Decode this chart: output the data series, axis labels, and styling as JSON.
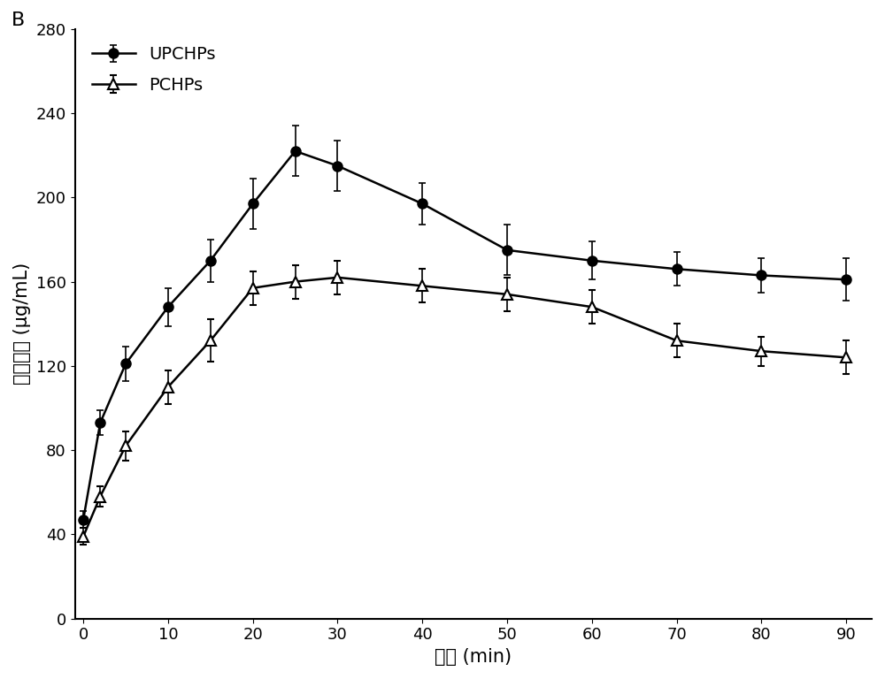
{
  "title_label": "B",
  "xlabel": "时间 (min)",
  "ylabel": "多肽浓度 (μg/mL)",
  "xlim": [
    -1,
    93
  ],
  "ylim": [
    0,
    280
  ],
  "xticks": [
    0,
    10,
    20,
    30,
    40,
    50,
    60,
    70,
    80,
    90
  ],
  "yticks": [
    0,
    40,
    80,
    120,
    160,
    200,
    240,
    280
  ],
  "series": [
    {
      "label": "UPCHPs",
      "x": [
        0,
        2,
        5,
        10,
        15,
        20,
        25,
        30,
        40,
        50,
        60,
        70,
        80,
        90
      ],
      "y": [
        47,
        93,
        121,
        148,
        170,
        197,
        222,
        215,
        197,
        175,
        170,
        166,
        163,
        161
      ],
      "yerr": [
        4,
        6,
        8,
        9,
        10,
        12,
        12,
        12,
        10,
        12,
        9,
        8,
        8,
        10
      ],
      "marker": "o",
      "color": "#000000",
      "fillstyle": "full"
    },
    {
      "label": "PCHPs",
      "x": [
        0,
        2,
        5,
        10,
        15,
        20,
        25,
        30,
        40,
        50,
        60,
        70,
        80,
        90
      ],
      "y": [
        39,
        58,
        82,
        110,
        132,
        157,
        160,
        162,
        158,
        154,
        148,
        132,
        127,
        124
      ],
      "yerr": [
        4,
        5,
        7,
        8,
        10,
        8,
        8,
        8,
        8,
        8,
        8,
        8,
        7,
        8
      ],
      "marker": "^",
      "color": "#000000",
      "fillstyle": "none"
    }
  ],
  "legend_loc": "upper left",
  "background_color": "#ffffff",
  "title_fontsize": 16,
  "label_fontsize": 15,
  "tick_fontsize": 13,
  "legend_fontsize": 14
}
